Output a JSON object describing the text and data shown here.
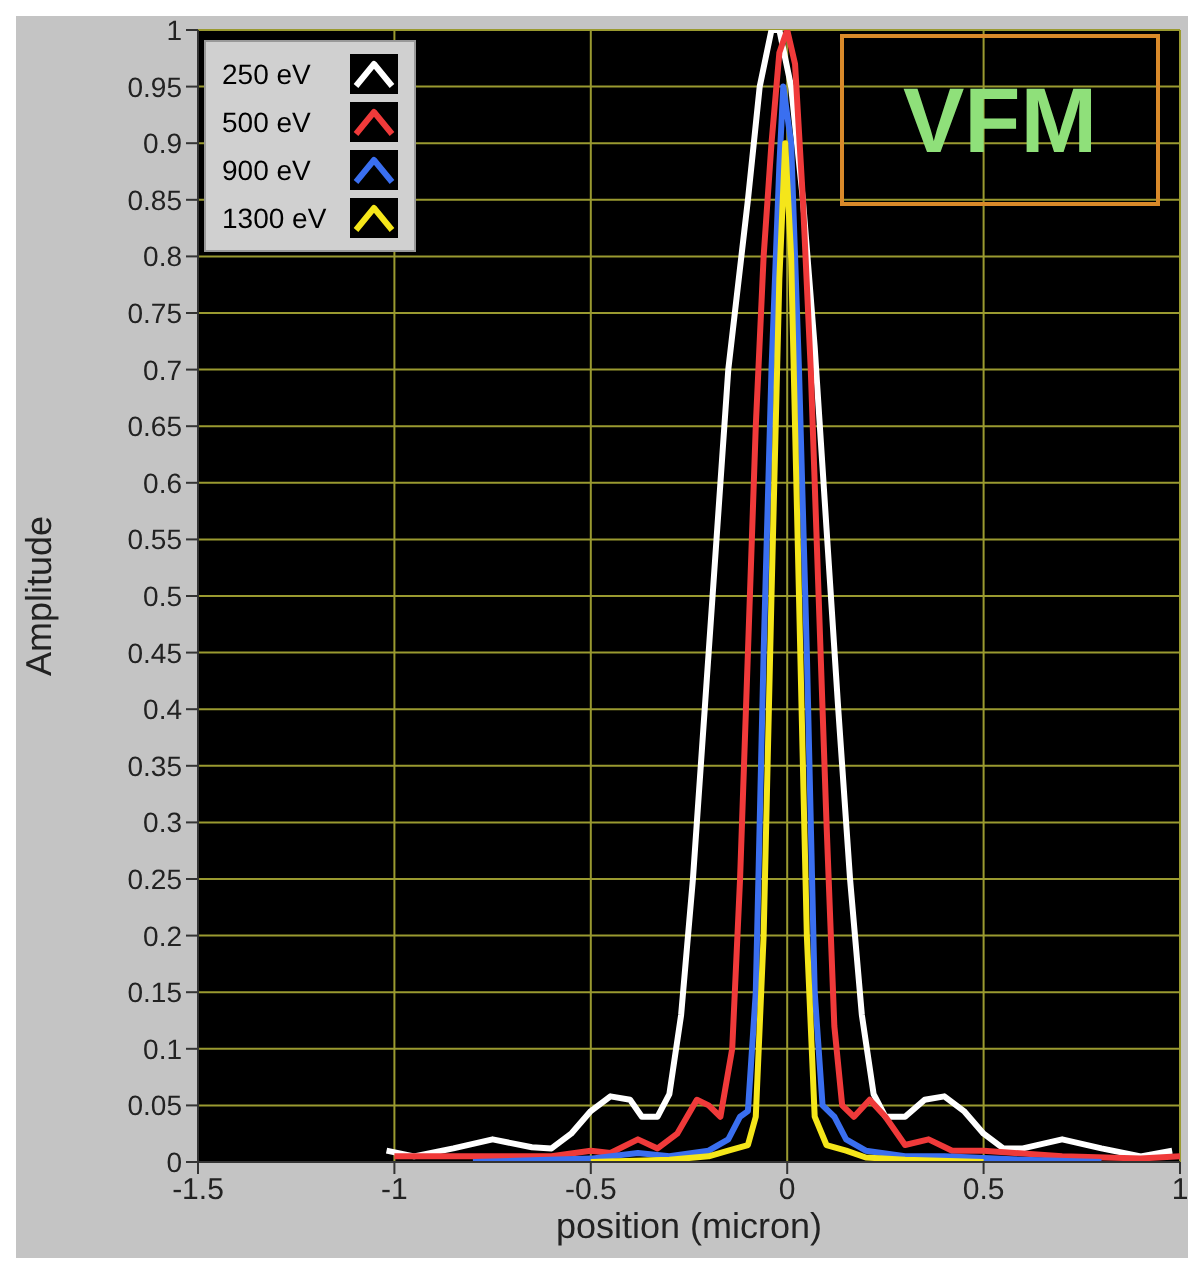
{
  "chart_data": {
    "type": "line",
    "xlabel": "position (micron)",
    "ylabel": "Amplitude",
    "annotations": [
      "VFM"
    ],
    "xlim": [
      -1.5,
      1
    ],
    "xticks": [
      -1.5,
      -1,
      -0.5,
      0,
      0.5,
      1
    ],
    "ylim": [
      0,
      1
    ],
    "yticks": [
      0,
      0.05,
      0.1,
      0.15,
      0.2,
      0.25,
      0.3,
      0.35,
      0.4,
      0.45,
      0.5,
      0.55,
      0.6,
      0.65,
      0.7,
      0.75,
      0.8,
      0.85,
      0.9,
      0.95,
      1
    ],
    "grid": true,
    "legend": "top left",
    "marker": "none",
    "line_style": "solid",
    "series": [
      {
        "name": "250 eV",
        "color": "#ffffff",
        "x": [
          -1.02,
          -0.95,
          -0.85,
          -0.75,
          -0.65,
          -0.6,
          -0.55,
          -0.5,
          -0.45,
          -0.4,
          -0.37,
          -0.33,
          -0.3,
          -0.27,
          -0.24,
          -0.21,
          -0.18,
          -0.15,
          -0.1,
          -0.07,
          -0.04,
          -0.02,
          0.01,
          0.04,
          0.07,
          0.1,
          0.13,
          0.16,
          0.19,
          0.22,
          0.25,
          0.3,
          0.35,
          0.4,
          0.45,
          0.5,
          0.55,
          0.6,
          0.7,
          0.8,
          0.9,
          0.98
        ],
        "values": [
          0.01,
          0.005,
          0.012,
          0.02,
          0.013,
          0.012,
          0.025,
          0.045,
          0.058,
          0.055,
          0.04,
          0.04,
          0.06,
          0.13,
          0.25,
          0.4,
          0.55,
          0.7,
          0.85,
          0.95,
          1,
          1,
          0.95,
          0.85,
          0.72,
          0.56,
          0.4,
          0.25,
          0.13,
          0.06,
          0.04,
          0.04,
          0.055,
          0.058,
          0.045,
          0.025,
          0.012,
          0.012,
          0.02,
          0.012,
          0.005,
          0.01
        ]
      },
      {
        "name": "500 eV",
        "color": "#f03a3a",
        "x": [
          -1,
          -0.8,
          -0.6,
          -0.5,
          -0.45,
          -0.38,
          -0.33,
          -0.28,
          -0.23,
          -0.2,
          -0.17,
          -0.14,
          -0.12,
          -0.1,
          -0.08,
          -0.06,
          -0.04,
          -0.02,
          0,
          0.02,
          0.04,
          0.06,
          0.08,
          0.1,
          0.12,
          0.14,
          0.17,
          0.21,
          0.25,
          0.3,
          0.36,
          0.42,
          0.5,
          0.7,
          0.9,
          1
        ],
        "values": [
          0.005,
          0.005,
          0.005,
          0.01,
          0.008,
          0.02,
          0.012,
          0.025,
          0.055,
          0.05,
          0.04,
          0.1,
          0.25,
          0.45,
          0.65,
          0.8,
          0.9,
          0.98,
          1,
          0.97,
          0.85,
          0.7,
          0.5,
          0.3,
          0.12,
          0.05,
          0.04,
          0.055,
          0.04,
          0.015,
          0.02,
          0.01,
          0.01,
          0.005,
          0.003,
          0.005
        ]
      },
      {
        "name": "900 eV",
        "color": "#3a6ff0",
        "x": [
          -0.8,
          -0.5,
          -0.38,
          -0.3,
          -0.2,
          -0.15,
          -0.12,
          -0.1,
          -0.08,
          -0.06,
          -0.04,
          -0.02,
          -0.01,
          0.01,
          0.03,
          0.05,
          0.07,
          0.09,
          0.12,
          0.15,
          0.2,
          0.3,
          0.4,
          0.6,
          0.8
        ],
        "values": [
          0,
          0.003,
          0.008,
          0.005,
          0.01,
          0.02,
          0.04,
          0.045,
          0.15,
          0.45,
          0.7,
          0.88,
          0.95,
          0.9,
          0.7,
          0.45,
          0.15,
          0.05,
          0.04,
          0.02,
          0.01,
          0.005,
          0.005,
          0.002,
          0
        ]
      },
      {
        "name": "1300 eV",
        "color": "#f5e61a",
        "x": [
          -0.5,
          -0.3,
          -0.2,
          -0.15,
          -0.1,
          -0.08,
          -0.06,
          -0.04,
          -0.02,
          -0.005,
          0.01,
          0.03,
          0.05,
          0.07,
          0.1,
          0.15,
          0.2,
          0.3,
          0.5
        ],
        "values": [
          0,
          0.002,
          0.005,
          0.01,
          0.015,
          0.04,
          0.2,
          0.5,
          0.78,
          0.9,
          0.8,
          0.5,
          0.2,
          0.04,
          0.015,
          0.01,
          0.004,
          0.002,
          0
        ]
      }
    ]
  }
}
